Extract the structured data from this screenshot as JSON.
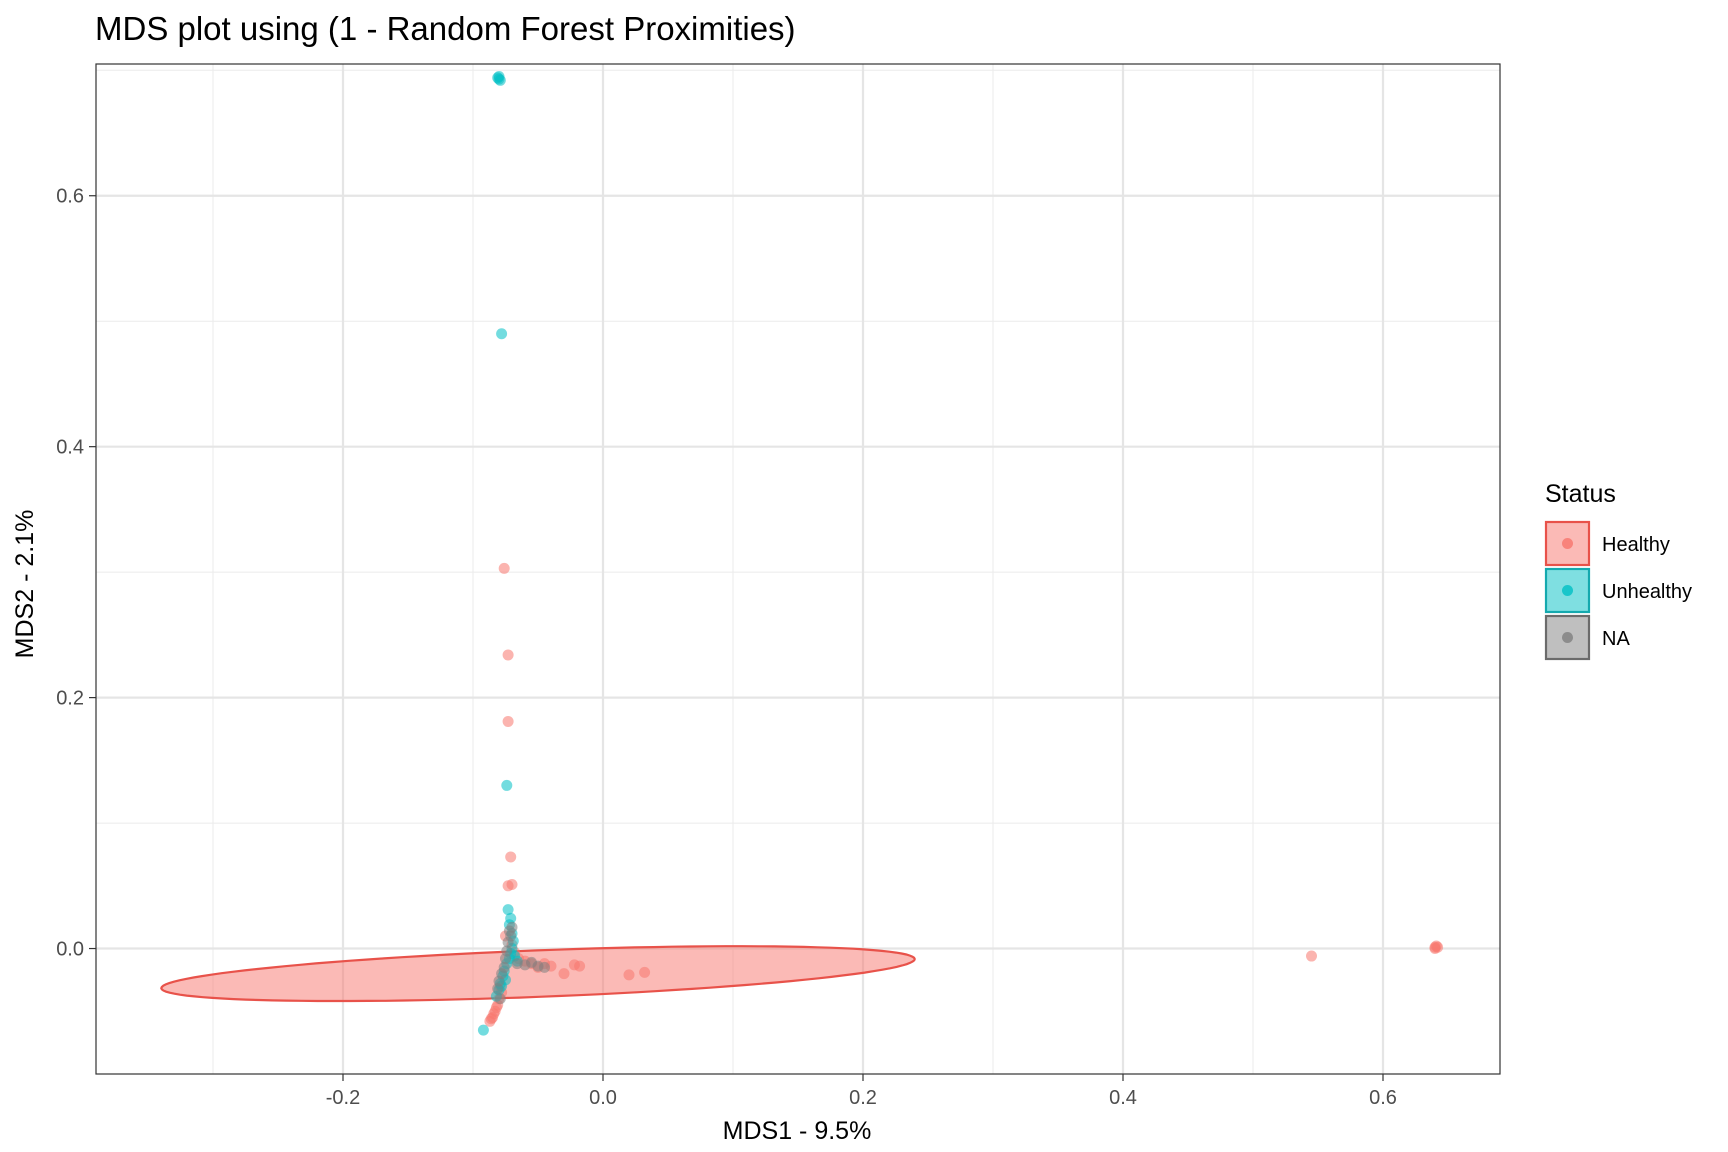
{
  "chart_data": {
    "type": "scatter",
    "title": "MDS plot using (1 - Random Forest Proximities)",
    "xlabel": "MDS1 - 9.5%",
    "ylabel": "MDS2 - 2.1%",
    "xlim": [
      -0.39,
      0.69
    ],
    "ylim": [
      -0.1,
      0.705
    ],
    "x_ticks": [
      -0.2,
      0.0,
      0.2,
      0.4,
      0.6
    ],
    "x_tick_labels": [
      "-0.2",
      "0.0",
      "0.2",
      "0.4",
      "0.6"
    ],
    "y_ticks": [
      0.0,
      0.2,
      0.4,
      0.6
    ],
    "y_tick_labels": [
      "0.0",
      "0.2",
      "0.4",
      "0.6"
    ],
    "grid": true,
    "legend": {
      "title": "Status",
      "placement": "right",
      "entries": [
        "Healthy",
        "Unhealthy",
        "NA"
      ]
    },
    "series": [
      {
        "name": "Healthy",
        "color": "#F8766D",
        "points": [
          [
            -0.076,
            0.303
          ],
          [
            -0.073,
            0.234
          ],
          [
            -0.073,
            0.181
          ],
          [
            -0.071,
            0.073
          ],
          [
            -0.073,
            0.05
          ],
          [
            -0.07,
            0.051
          ],
          [
            -0.075,
            0.01
          ],
          [
            -0.07,
            0.003
          ],
          [
            -0.068,
            -0.003
          ],
          [
            -0.065,
            -0.008
          ],
          [
            -0.06,
            -0.01
          ],
          [
            -0.055,
            -0.012
          ],
          [
            -0.05,
            -0.015
          ],
          [
            -0.045,
            -0.012
          ],
          [
            -0.04,
            -0.014
          ],
          [
            -0.03,
            -0.02
          ],
          [
            -0.022,
            -0.013
          ],
          [
            -0.018,
            -0.014
          ],
          [
            0.02,
            -0.021
          ],
          [
            0.032,
            -0.019
          ],
          [
            -0.085,
            -0.055
          ],
          [
            -0.087,
            -0.058
          ],
          [
            -0.084,
            -0.052
          ],
          [
            -0.082,
            -0.047
          ],
          [
            -0.08,
            -0.04
          ],
          [
            -0.078,
            -0.035
          ],
          [
            -0.083,
            -0.05
          ],
          [
            -0.086,
            -0.056
          ],
          [
            -0.079,
            -0.03
          ],
          [
            -0.081,
            -0.045
          ],
          [
            0.545,
            -0.006
          ],
          [
            0.64,
            0.001
          ],
          [
            0.641,
            0.002
          ],
          [
            0.64,
            0.0
          ],
          [
            0.642,
            0.001
          ]
        ]
      },
      {
        "name": "Unhealthy",
        "color": "#00BFC4",
        "points": [
          [
            -0.08,
            0.695
          ],
          [
            -0.08,
            0.693
          ],
          [
            -0.079,
            0.692
          ],
          [
            -0.081,
            0.694
          ],
          [
            -0.078,
            0.49
          ],
          [
            -0.074,
            0.13
          ],
          [
            -0.073,
            0.031
          ],
          [
            -0.071,
            0.024
          ],
          [
            -0.072,
            0.019
          ],
          [
            -0.07,
            0.012
          ],
          [
            -0.069,
            0.006
          ],
          [
            -0.07,
            0.0
          ],
          [
            -0.071,
            -0.004
          ],
          [
            -0.072,
            -0.008
          ],
          [
            -0.074,
            -0.012
          ],
          [
            -0.076,
            -0.018
          ],
          [
            -0.077,
            -0.022
          ],
          [
            -0.079,
            -0.028
          ],
          [
            -0.08,
            -0.033
          ],
          [
            -0.082,
            -0.038
          ],
          [
            -0.068,
            -0.006
          ],
          [
            -0.066,
            -0.01
          ],
          [
            -0.075,
            -0.025
          ],
          [
            -0.078,
            -0.03
          ],
          [
            -0.092,
            -0.065
          ]
        ]
      },
      {
        "name": "NA",
        "color": "#7F7F7F",
        "points": [
          [
            -0.072,
            0.014
          ],
          [
            -0.071,
            0.01
          ],
          [
            -0.07,
            0.017
          ],
          [
            -0.073,
            0.005
          ],
          [
            -0.074,
            -0.002
          ],
          [
            -0.075,
            -0.008
          ],
          [
            -0.076,
            -0.015
          ],
          [
            -0.078,
            -0.02
          ],
          [
            -0.08,
            -0.026
          ],
          [
            -0.081,
            -0.032
          ],
          [
            -0.079,
            -0.04
          ],
          [
            -0.066,
            -0.012
          ],
          [
            -0.06,
            -0.013
          ],
          [
            -0.055,
            -0.011
          ],
          [
            -0.05,
            -0.014
          ],
          [
            -0.045,
            -0.015
          ]
        ]
      }
    ],
    "ellipse": {
      "series": "Healthy",
      "center": [
        -0.05,
        -0.02
      ],
      "semi_major": 0.29,
      "semi_minor": 0.0185,
      "angle_deg": 2.3,
      "fill": "#F8766D",
      "stroke": "#E8524A"
    }
  }
}
